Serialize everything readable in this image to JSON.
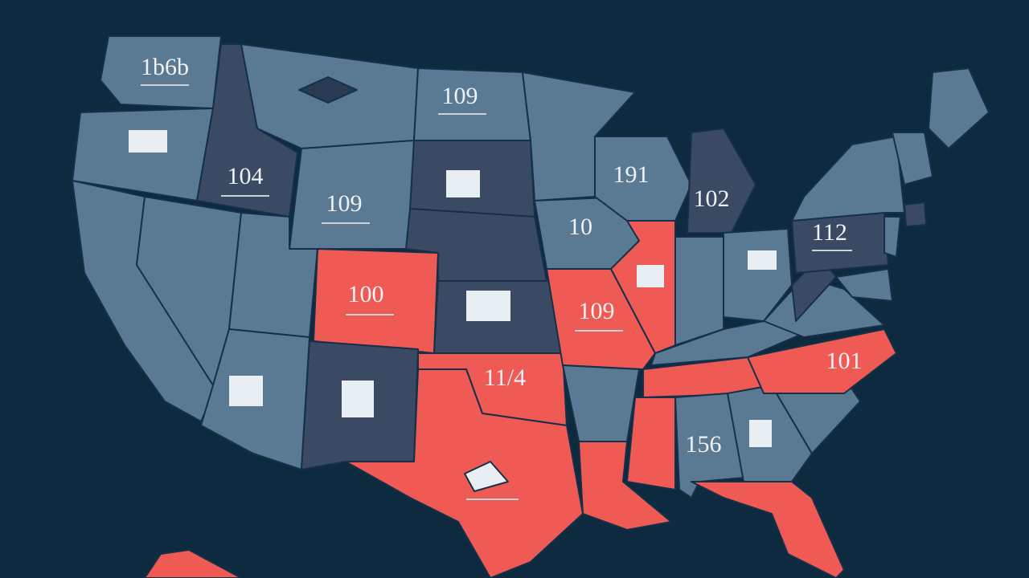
{
  "map": {
    "labels": [
      "1b6b",
      "109",
      "104",
      "109",
      "102",
      "109",
      "100",
      "11/4",
      "10",
      "112",
      "101",
      "156",
      "191"
    ]
  }
}
